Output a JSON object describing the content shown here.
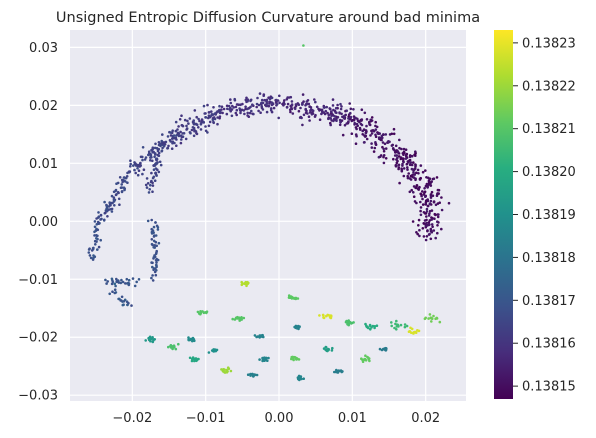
{
  "chart_data": {
    "type": "scatter",
    "title": "Unsigned Entropic Diffusion Curvature around bad minima",
    "xlabel": "",
    "ylabel": "",
    "xlim": [
      -0.0285,
      0.0255
    ],
    "ylim": [
      -0.031,
      0.033
    ],
    "grid": true,
    "x_ticks": [
      -0.02,
      -0.01,
      0.0,
      0.01,
      0.02
    ],
    "x_tick_labels": [
      "−0.02",
      "−0.01",
      "0.00",
      "0.01",
      "0.02"
    ],
    "y_ticks": [
      -0.03,
      -0.02,
      -0.01,
      0.0,
      0.01,
      0.02,
      0.03
    ],
    "y_tick_labels": [
      "−0.03",
      "−0.02",
      "−0.01",
      "0.00",
      "0.01",
      "0.02",
      "0.03"
    ],
    "colorbar": {
      "colormap": "viridis",
      "min": 0.138147,
      "max": 0.138233,
      "ticks": [
        0.13815,
        0.13816,
        0.13817,
        0.13818,
        0.13819,
        0.1382,
        0.13821,
        0.13822,
        0.13823
      ],
      "tick_labels": [
        "0.13815",
        "0.13816",
        "0.13817",
        "0.13818",
        "0.13819",
        "0.13820",
        "0.13821",
        "0.13822",
        "0.13823"
      ]
    },
    "arc_segments": [
      {
        "x0": 0.0205,
        "y0": -0.0025,
        "x1": 0.0205,
        "y1": 0.005,
        "value": 0.13815,
        "spread": 0.0016
      },
      {
        "x0": 0.0205,
        "y0": 0.005,
        "x1": 0.0155,
        "y1": 0.013,
        "value": 0.13815,
        "spread": 0.0018
      },
      {
        "x0": 0.0155,
        "y0": 0.013,
        "x1": 0.009,
        "y1": 0.018,
        "value": 0.138152,
        "spread": 0.0018
      },
      {
        "x0": 0.009,
        "y0": 0.018,
        "x1": 0.0,
        "y1": 0.0205,
        "value": 0.138156,
        "spread": 0.0016
      },
      {
        "x0": 0.0,
        "y0": 0.0205,
        "x1": -0.008,
        "y1": 0.019,
        "value": 0.138159,
        "spread": 0.0016
      },
      {
        "x0": -0.008,
        "y0": 0.019,
        "x1": -0.0145,
        "y1": 0.0145,
        "value": 0.138162,
        "spread": 0.0015
      },
      {
        "x0": -0.0145,
        "y0": 0.0145,
        "x1": -0.02,
        "y1": 0.009,
        "value": 0.138164,
        "spread": 0.0012
      },
      {
        "x0": -0.02,
        "y0": 0.009,
        "x1": -0.0245,
        "y1": 0.0,
        "value": 0.138166,
        "spread": 0.0008
      },
      {
        "x0": -0.0245,
        "y0": 0.0,
        "x1": -0.0255,
        "y1": -0.0065,
        "value": 0.138168,
        "spread": 0.0006
      },
      {
        "x0": -0.0165,
        "y0": 0.0135,
        "x1": -0.0175,
        "y1": 0.0055,
        "value": 0.138164,
        "spread": 0.0007
      },
      {
        "x0": -0.017,
        "y0": 0.0005,
        "x1": -0.017,
        "y1": -0.0095,
        "value": 0.138169,
        "spread": 0.0006
      },
      {
        "x0": -0.0235,
        "y0": -0.0105,
        "x1": -0.0195,
        "y1": -0.0105,
        "value": 0.13817,
        "spread": 0.0008
      },
      {
        "x0": -0.0225,
        "y0": -0.0125,
        "x1": -0.0205,
        "y1": -0.0145,
        "value": 0.13817,
        "spread": 0.0006
      }
    ],
    "clusters": [
      {
        "x": 0.0033,
        "y": 0.0303,
        "value": 0.13821,
        "spread": 5e-05
      },
      {
        "x": -0.0045,
        "y": -0.0107,
        "value": 0.138223,
        "spread": 0.0006
      },
      {
        "x": 0.0018,
        "y": -0.0132,
        "value": 0.138211,
        "spread": 0.0006
      },
      {
        "x": -0.0105,
        "y": -0.0158,
        "value": 0.13821,
        "spread": 0.0005
      },
      {
        "x": -0.0055,
        "y": -0.0168,
        "value": 0.13821,
        "spread": 0.0005
      },
      {
        "x": 0.0065,
        "y": -0.0165,
        "value": 0.138228,
        "spread": 0.0006
      },
      {
        "x": 0.0095,
        "y": -0.0175,
        "value": 0.138208,
        "spread": 0.0007
      },
      {
        "x": 0.0125,
        "y": -0.0182,
        "value": 0.1382,
        "spread": 0.0006
      },
      {
        "x": 0.0162,
        "y": -0.018,
        "value": 0.138205,
        "spread": 0.0008
      },
      {
        "x": 0.0185,
        "y": -0.019,
        "value": 0.138228,
        "spread": 0.0007
      },
      {
        "x": 0.021,
        "y": -0.0168,
        "value": 0.138214,
        "spread": 0.0009
      },
      {
        "x": -0.0175,
        "y": -0.0203,
        "value": 0.138193,
        "spread": 0.0006
      },
      {
        "x": -0.012,
        "y": -0.0205,
        "value": 0.138188,
        "spread": 0.0005
      },
      {
        "x": -0.0025,
        "y": -0.0198,
        "value": 0.138185,
        "spread": 0.0004
      },
      {
        "x": 0.0025,
        "y": -0.0183,
        "value": 0.138185,
        "spread": 0.0004
      },
      {
        "x": -0.0145,
        "y": -0.0217,
        "value": 0.138208,
        "spread": 0.0007
      },
      {
        "x": -0.0088,
        "y": -0.0222,
        "value": 0.13819,
        "spread": 0.0006
      },
      {
        "x": 0.0065,
        "y": -0.0222,
        "value": 0.138195,
        "spread": 0.0007
      },
      {
        "x": 0.0145,
        "y": -0.0222,
        "value": 0.138182,
        "spread": 0.0005
      },
      {
        "x": -0.0115,
        "y": -0.0238,
        "value": 0.138198,
        "spread": 0.0005
      },
      {
        "x": -0.0018,
        "y": -0.0238,
        "value": 0.138186,
        "spread": 0.0005
      },
      {
        "x": 0.0022,
        "y": -0.0237,
        "value": 0.138212,
        "spread": 0.0005
      },
      {
        "x": 0.0118,
        "y": -0.0238,
        "value": 0.138212,
        "spread": 0.0006
      },
      {
        "x": -0.0075,
        "y": -0.0257,
        "value": 0.13822,
        "spread": 0.0006
      },
      {
        "x": 0.0082,
        "y": -0.0259,
        "value": 0.138183,
        "spread": 0.0005
      },
      {
        "x": -0.0035,
        "y": -0.0265,
        "value": 0.138184,
        "spread": 0.0005
      },
      {
        "x": 0.0028,
        "y": -0.0271,
        "value": 0.138186,
        "spread": 0.0005
      }
    ]
  }
}
